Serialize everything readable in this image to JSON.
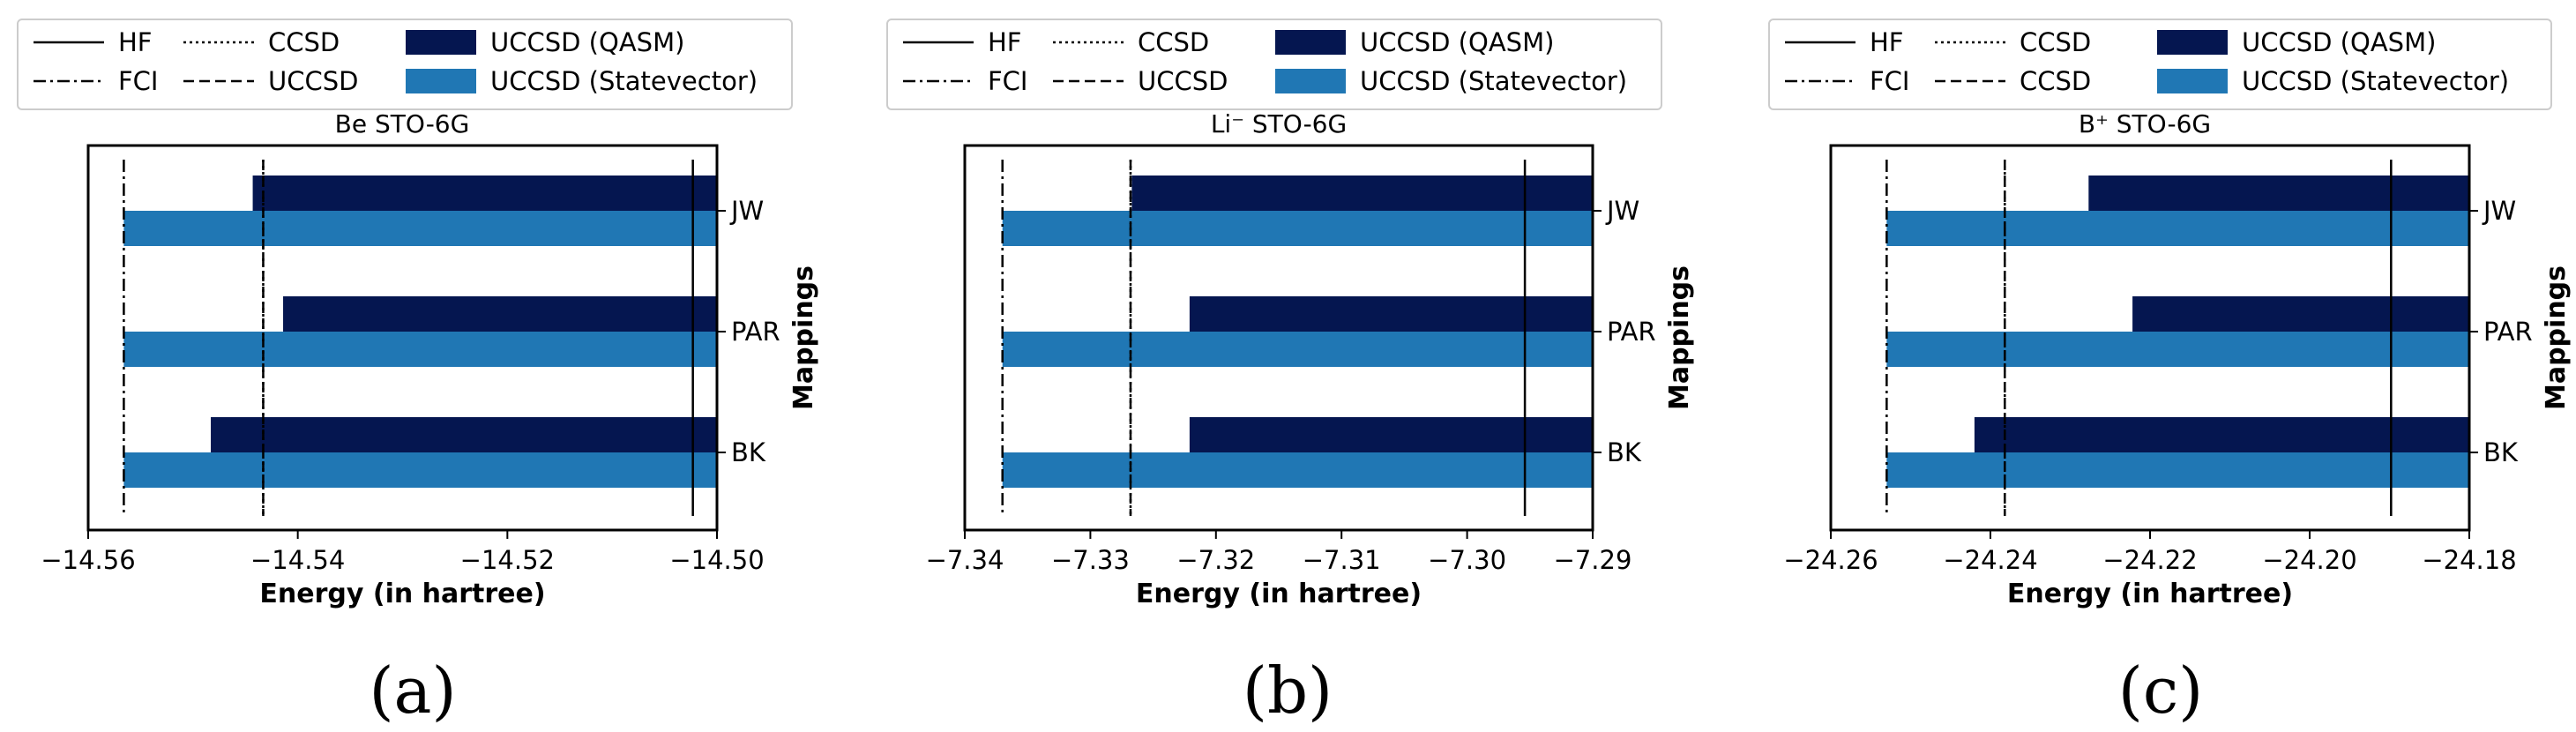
{
  "chart_data": [
    {
      "type": "bar",
      "orientation": "horizontal",
      "title": "Be STO-6G",
      "caption": "(a)",
      "xlabel": "Energy (in hartree)",
      "ylabel": "Mappings",
      "categories": [
        "JW",
        "PAR",
        "BK"
      ],
      "xlim": [
        -14.56,
        -14.5
      ],
      "xticks": [
        -14.56,
        -14.54,
        -14.52,
        -14.5
      ],
      "xtick_labels": [
        "−14.56",
        "−14.54",
        "−14.52",
        "−14.50"
      ],
      "series": [
        {
          "name": "UCCSD (QASM)",
          "color": "#051650",
          "values": [
            -14.5443,
            -14.5414,
            -14.5483
          ]
        },
        {
          "name": "UCCSD (Statevector)",
          "color": "#2077b4",
          "values": [
            -14.5566,
            -14.5566,
            -14.5566
          ]
        }
      ],
      "reference_lines": [
        {
          "name": "HF",
          "style": "solid",
          "x": -14.5023
        },
        {
          "name": "FCI",
          "style": "dashdot",
          "x": -14.5566
        },
        {
          "name": "CCSD",
          "style": "dotted",
          "x": -14.5433
        },
        {
          "name": "UCCSD",
          "style": "dashed",
          "x": -14.5433
        }
      ],
      "legend": {
        "placement": "top",
        "entries": [
          {
            "label": "HF",
            "style": "solid"
          },
          {
            "label": "FCI",
            "style": "dashdot"
          },
          {
            "label": "CCSD",
            "style": "dotted"
          },
          {
            "label": "UCCSD",
            "style": "dashed"
          },
          {
            "label": "UCCSD (QASM)",
            "style": "patch",
            "color": "#051650"
          },
          {
            "label": "UCCSD (Statevector)",
            "style": "patch",
            "color": "#2077b4"
          }
        ]
      }
    },
    {
      "type": "bar",
      "orientation": "horizontal",
      "title": "Li⁻ STO-6G",
      "caption": "(b)",
      "xlabel": "Energy (in hartree)",
      "ylabel": "Mappings",
      "categories": [
        "JW",
        "PAR",
        "BK"
      ],
      "xlim": [
        -7.34,
        -7.29
      ],
      "xticks": [
        -7.34,
        -7.33,
        -7.32,
        -7.31,
        -7.3,
        -7.29
      ],
      "xtick_labels": [
        "−7.34",
        "−7.33",
        "−7.32",
        "−7.31",
        "−7.30",
        "−7.29"
      ],
      "series": [
        {
          "name": "UCCSD (QASM)",
          "color": "#051650",
          "values": [
            -7.3267,
            -7.3221,
            -7.3221
          ]
        },
        {
          "name": "UCCSD (Statevector)",
          "color": "#2077b4",
          "values": [
            -7.337,
            -7.337,
            -7.337
          ]
        }
      ],
      "reference_lines": [
        {
          "name": "HF",
          "style": "solid",
          "x": -7.2954
        },
        {
          "name": "FCI",
          "style": "dashdot",
          "x": -7.337
        },
        {
          "name": "CCSD",
          "style": "dotted",
          "x": -7.3268
        },
        {
          "name": "UCCSD",
          "style": "dashed",
          "x": -7.3268
        }
      ],
      "legend": {
        "placement": "top",
        "entries": [
          {
            "label": "HF",
            "style": "solid"
          },
          {
            "label": "FCI",
            "style": "dashdot"
          },
          {
            "label": "CCSD",
            "style": "dotted"
          },
          {
            "label": "UCCSD",
            "style": "dashed"
          },
          {
            "label": "UCCSD (QASM)",
            "style": "patch",
            "color": "#051650"
          },
          {
            "label": "UCCSD (Statevector)",
            "style": "patch",
            "color": "#2077b4"
          }
        ]
      }
    },
    {
      "type": "bar",
      "orientation": "horizontal",
      "title": "B⁺  STO-6G",
      "caption": "(c)",
      "xlabel": "Energy (in hartree)",
      "ylabel": "Mappings",
      "categories": [
        "JW",
        "PAR",
        "BK"
      ],
      "xlim": [
        -24.26,
        -24.18
      ],
      "xticks": [
        -24.26,
        -24.24,
        -24.22,
        -24.2,
        -24.18
      ],
      "xtick_labels": [
        "−24.26",
        "−24.24",
        "−24.22",
        "−24.20",
        "−24.18"
      ],
      "series": [
        {
          "name": "UCCSD (QASM)",
          "color": "#051650",
          "values": [
            -24.2277,
            -24.2222,
            -24.242
          ]
        },
        {
          "name": "UCCSD (Statevector)",
          "color": "#2077b4",
          "values": [
            -24.253,
            -24.253,
            -24.253
          ]
        }
      ],
      "reference_lines": [
        {
          "name": "HF",
          "style": "solid",
          "x": -24.1898
        },
        {
          "name": "FCI",
          "style": "dashdot",
          "x": -24.253
        },
        {
          "name": "CCSD",
          "style": "dotted",
          "x": -24.2382
        },
        {
          "name": "CCSD",
          "style": "dashed",
          "x": -24.2382
        }
      ],
      "legend": {
        "placement": "top",
        "entries": [
          {
            "label": "HF",
            "style": "solid"
          },
          {
            "label": "FCI",
            "style": "dashdot"
          },
          {
            "label": "CCSD",
            "style": "dotted"
          },
          {
            "label": "CCSD",
            "style": "dashed"
          },
          {
            "label": "UCCSD (QASM)",
            "style": "patch",
            "color": "#051650"
          },
          {
            "label": "UCCSD (Statevector)",
            "style": "patch",
            "color": "#2077b4"
          }
        ]
      }
    }
  ]
}
